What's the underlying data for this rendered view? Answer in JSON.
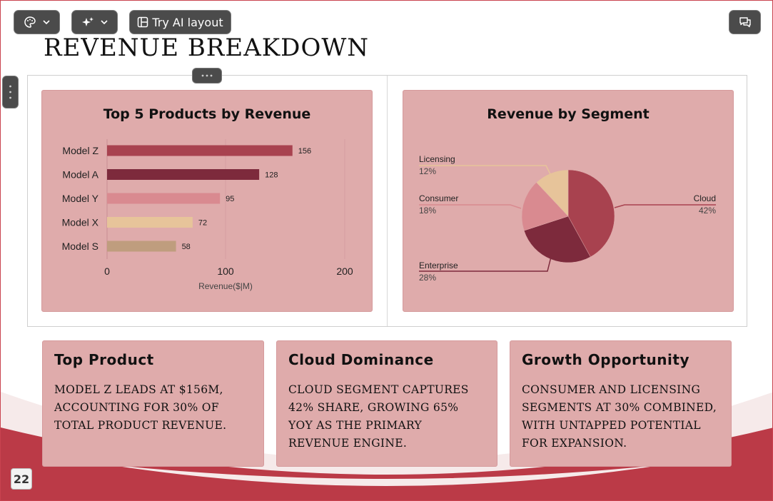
{
  "toolbar": {
    "palette_icon": "palette-icon",
    "sparkle_icon": "sparkle-icon",
    "ai_layout_label": "Try AI layout",
    "comment_icon": "comment-icon"
  },
  "slide": {
    "title": "Revenue Breakdown",
    "page_number": "22",
    "colors": {
      "accent": "#bb3a47",
      "card": "#dfabab"
    }
  },
  "bar_chart": {
    "title": "Top 5 Products by Revenue",
    "xlabel": "Revenue($|M)",
    "ticks": [
      "0",
      "100",
      "200"
    ]
  },
  "pie_chart": {
    "title": "Revenue by Segment"
  },
  "chart_data": [
    {
      "type": "bar",
      "orientation": "horizontal",
      "title": "Top 5 Products by Revenue",
      "categories": [
        "Model Z",
        "Model A",
        "Model Y",
        "Model X",
        "Model S"
      ],
      "values": [
        156,
        128,
        95,
        72,
        58
      ],
      "colors": [
        "#a8424f",
        "#7d2a3c",
        "#d98a90",
        "#e7c49a",
        "#bf9d7e"
      ],
      "xlabel": "Revenue($|M)",
      "ylabel": "",
      "xlim": [
        0,
        200
      ],
      "grid": true
    },
    {
      "type": "pie",
      "title": "Revenue by Segment",
      "labels": [
        "Cloud",
        "Enterprise",
        "Consumer",
        "Licensing"
      ],
      "values": [
        42,
        28,
        18,
        12
      ],
      "value_labels": [
        "42%",
        "28%",
        "18%",
        "12%"
      ],
      "colors": [
        "#a8424f",
        "#7d2a3c",
        "#d98a90",
        "#e7c49a"
      ]
    }
  ],
  "cards": [
    {
      "title": "Top Product",
      "body": "Model Z leads at $156M, accounting for 30% of total product revenue."
    },
    {
      "title": "Cloud Dominance",
      "body": "Cloud segment captures 42% share, growing 65% YoY as the primary revenue engine."
    },
    {
      "title": "Growth Opportunity",
      "body": "Consumer and Licensing segments at 30% combined, with untapped potential for expansion."
    }
  ]
}
